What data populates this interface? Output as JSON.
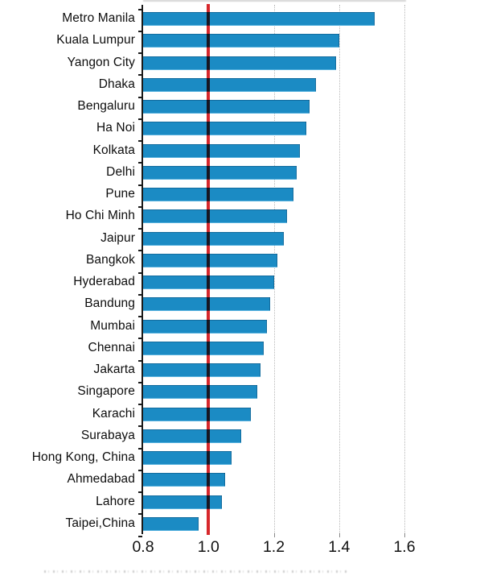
{
  "chart_data": {
    "type": "bar",
    "orientation": "horizontal",
    "title": "",
    "xlabel": "",
    "ylabel": "",
    "categories": [
      "Metro Manila",
      "Kuala Lumpur",
      "Yangon City",
      "Dhaka",
      "Bengaluru",
      "Ha Noi",
      "Kolkata",
      "Delhi",
      "Pune",
      "Ho Chi Minh",
      "Jaipur",
      "Bangkok",
      "Hyderabad",
      "Bandung",
      "Mumbai",
      "Chennai",
      "Jakarta",
      "Singapore",
      "Karachi",
      "Surabaya",
      "Hong Kong, China",
      "Ahmedabad",
      "Lahore",
      "Taipei,China"
    ],
    "values": [
      1.51,
      1.4,
      1.39,
      1.33,
      1.31,
      1.3,
      1.28,
      1.27,
      1.26,
      1.24,
      1.23,
      1.21,
      1.2,
      1.19,
      1.18,
      1.17,
      1.16,
      1.15,
      1.13,
      1.1,
      1.07,
      1.05,
      1.04,
      0.97
    ],
    "xlim": [
      0.8,
      1.6
    ],
    "x_ticks": [
      0.8,
      1.0,
      1.2,
      1.4,
      1.6
    ],
    "x_tick_labels": [
      "0.8",
      "1.0",
      "1.2",
      "1.4",
      "1.6"
    ],
    "reference_line": {
      "value": 1.0,
      "color": "#d7282c"
    },
    "bar_color": "#1b8bc4",
    "grid": "vertical dotted gridlines at 1.2, 1.4, 1.6",
    "legend": "none"
  }
}
